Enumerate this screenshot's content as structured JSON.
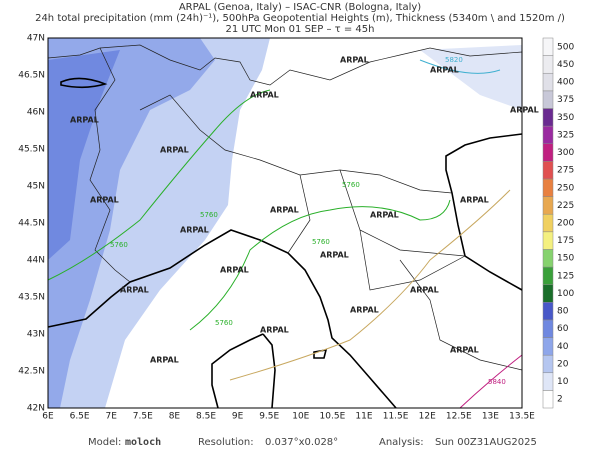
{
  "header": {
    "line1": "ARPAL (Genoa, Italy)  –  ISAC-CNR (Bologna, Italy)",
    "line2": "24h total precipitation (mm (24h)⁻¹), 500hPa Geopotential Heights (m), Thickness (5340m \\ and 1520m /)",
    "line3": "21 UTC Mon 01 SEP  –  τ = 45h"
  },
  "map": {
    "lat_labels": [
      "47N",
      "46.5N",
      "46N",
      "45.5N",
      "45N",
      "44.5N",
      "44N",
      "43.5N",
      "43N",
      "42.5N",
      "42N"
    ],
    "lon_labels": [
      "6E",
      "6.5E",
      "7E",
      "7.5E",
      "8E",
      "8.5E",
      "9E",
      "9.5E",
      "10E",
      "10.5E",
      "11E",
      "11.5E",
      "12E",
      "12.5E",
      "13E",
      "13.5E"
    ],
    "watermark": "ARPAL",
    "contour_labels": [
      "5760",
      "5760",
      "5760",
      "5760",
      "5760",
      "5820",
      "5840"
    ]
  },
  "colorbar": {
    "labels": [
      "2",
      "10",
      "20",
      "40",
      "60",
      "80",
      "100",
      "125",
      "150",
      "175",
      "200",
      "225",
      "250",
      "275",
      "300",
      "325",
      "350",
      "375",
      "400",
      "450",
      "500"
    ],
    "colors": [
      "#ffffff",
      "#dfe6f7",
      "#b5c6f0",
      "#8ea6ea",
      "#6f88e0",
      "#4858c8",
      "#1a6e2a",
      "#3aa03a",
      "#86d26e",
      "#f4f080",
      "#f0d060",
      "#e8a850",
      "#e88040",
      "#e05050",
      "#c02080",
      "#9a2aa0",
      "#6a2a90",
      "#c8c8d8",
      "#e0e0e8",
      "#ececf0",
      "#f6f6f8"
    ]
  },
  "footer": {
    "model_label": "Model:",
    "model": "moloch",
    "resolution_label": "Resolution:",
    "resolution": "0.037°x0.028°",
    "analysis_label": "Analysis:",
    "analysis": "Sun 00Z31AUG2025"
  }
}
